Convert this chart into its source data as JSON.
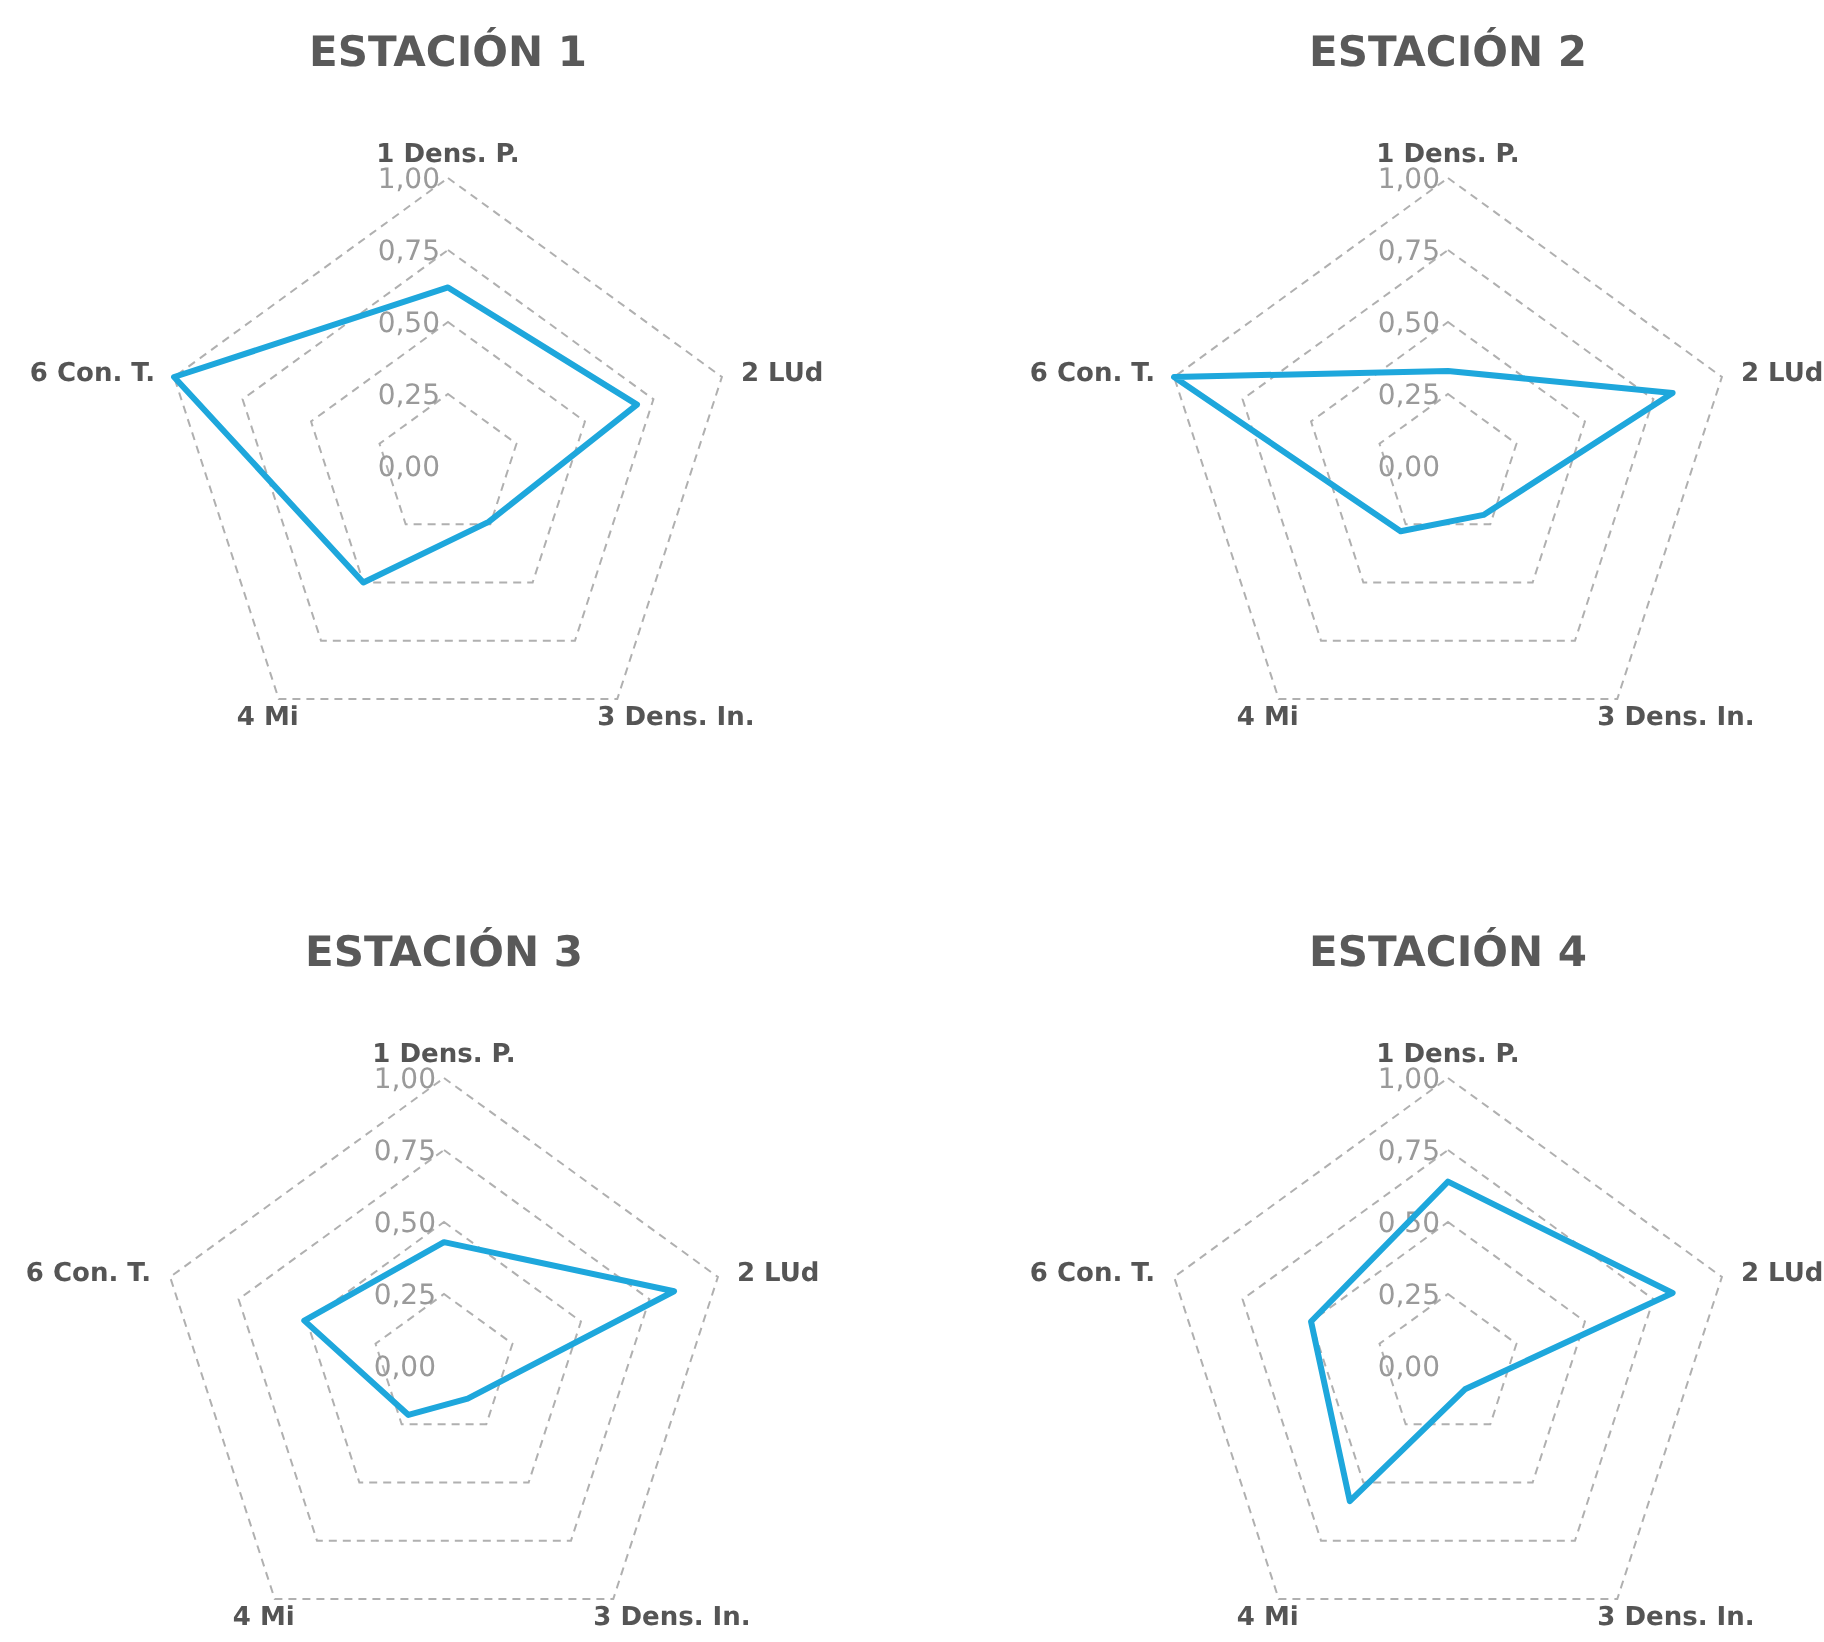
{
  "chart_data": [
    {
      "type": "radar",
      "title": "ESTACIÓN 1",
      "categories": [
        "1 Dens. P.",
        "2 LUd",
        "3 Dens. In.",
        "4 Mi",
        "6 Con. T."
      ],
      "series": [
        {
          "color": "#1ea7dc",
          "values": [
            0.62,
            0.69,
            0.24,
            0.5,
            1.0
          ]
        }
      ],
      "ylim": [
        0,
        1
      ],
      "yticks": [
        {
          "value": 0,
          "label": "0,00"
        },
        {
          "value": 0.25,
          "label": "0,25"
        },
        {
          "value": 0.5,
          "label": "0,50"
        },
        {
          "value": 0.75,
          "label": "0,75"
        },
        {
          "value": 1,
          "label": "1,00"
        }
      ],
      "grid": true,
      "marker": "none"
    },
    {
      "type": "radar",
      "title": "ESTACIÓN 2",
      "categories": [
        "1 Dens. P.",
        "2 LUd",
        "3 Dens. In.",
        "4 Mi",
        "6 Con. T."
      ],
      "series": [
        {
          "color": "#1ea7dc",
          "values": [
            0.33,
            0.82,
            0.21,
            0.28,
            1.0
          ]
        }
      ],
      "ylim": [
        0,
        1
      ],
      "yticks": [
        {
          "value": 0,
          "label": "0,00"
        },
        {
          "value": 0.25,
          "label": "0,25"
        },
        {
          "value": 0.5,
          "label": "0,50"
        },
        {
          "value": 0.75,
          "label": "0,75"
        },
        {
          "value": 1,
          "label": "1,00"
        }
      ],
      "grid": true,
      "marker": "none"
    },
    {
      "type": "radar",
      "title": "ESTACIÓN 3",
      "categories": [
        "1 Dens. P.",
        "2 LUd",
        "3 Dens. In.",
        "4 Mi",
        "6 Con. T."
      ],
      "series": [
        {
          "color": "#1ea7dc",
          "values": [
            0.43,
            0.84,
            0.14,
            0.21,
            0.51
          ]
        }
      ],
      "ylim": [
        0,
        1
      ],
      "yticks": [
        {
          "value": 0,
          "label": "0,00"
        },
        {
          "value": 0.25,
          "label": "0,25"
        },
        {
          "value": 0.5,
          "label": "0,50"
        },
        {
          "value": 0.75,
          "label": "0,75"
        },
        {
          "value": 1,
          "label": "1,00"
        }
      ],
      "grid": true,
      "marker": "none"
    },
    {
      "type": "radar",
      "title": "ESTACIÓN 4",
      "categories": [
        "1 Dens. P.",
        "2 LUd",
        "3 Dens. In.",
        "4 Mi",
        "6 Con. T."
      ],
      "series": [
        {
          "color": "#1ea7dc",
          "values": [
            0.64,
            0.82,
            0.1,
            0.58,
            0.5
          ]
        }
      ],
      "ylim": [
        0,
        1
      ],
      "yticks": [
        {
          "value": 0,
          "label": "0,00"
        },
        {
          "value": 0.25,
          "label": "0,25"
        },
        {
          "value": 0.5,
          "label": "0,50"
        },
        {
          "value": 0.75,
          "label": "0,75"
        },
        {
          "value": 1,
          "label": "1,00"
        }
      ],
      "grid": true,
      "marker": "none"
    }
  ]
}
